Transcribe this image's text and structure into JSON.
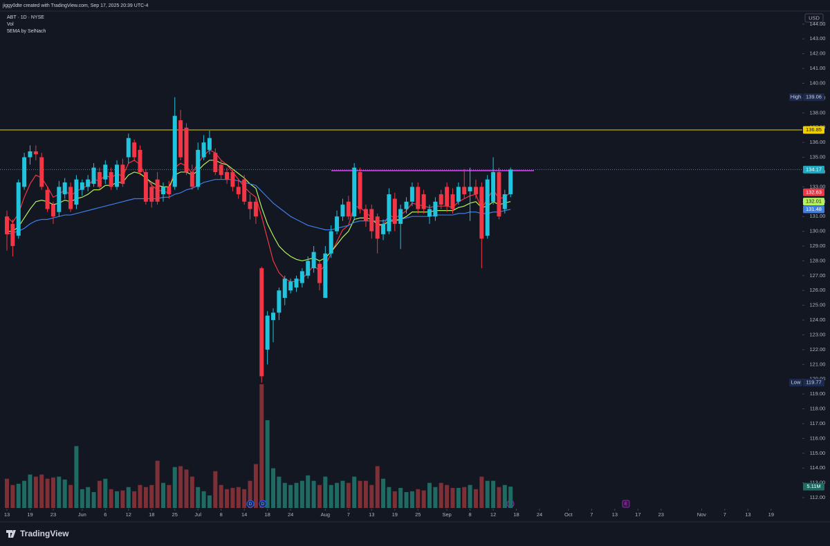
{
  "header": {
    "attribution": "jiggy0dte created with TradingView.com, Sep 17, 2025 20:39 UTC-4",
    "symbol": "ABT · 1D · NYSE",
    "indicators": [
      "Vol",
      "5EMA by SelNach"
    ]
  },
  "chart_data": {
    "type": "candlestick",
    "currency": "USD",
    "up_color": "#22c3dc",
    "down_color": "#f23645",
    "open": [
      131.0,
      130.5,
      129.7,
      133.0,
      135.0,
      135.4,
      135.0,
      132.8,
      131.8,
      131.3,
      132.5,
      133.0,
      131.8,
      132.8,
      133.0,
      133.2,
      134.0,
      133.5,
      134.0,
      133.0,
      134.5,
      135.0,
      136.0,
      135.5,
      134.0,
      133.0,
      133.5,
      132.5,
      133.0,
      133.0,
      137.5,
      137.0,
      134.0,
      133.0,
      135.0,
      135.5,
      135.3,
      134.5,
      134.0,
      134.0,
      133.0,
      133.5,
      132.0,
      132.0,
      127.5,
      122.0,
      124.0,
      124.5,
      125.5,
      126.0,
      126.2,
      126.5,
      127.0,
      127.5,
      127.8,
      125.5,
      128.5,
      130.0,
      131.0,
      132.0,
      131.0,
      134.0,
      131.5,
      131.5,
      131.0,
      129.8,
      130.0,
      132.2,
      130.5,
      131.5,
      132.0,
      133.0,
      132.5,
      131.0,
      131.0,
      132.5,
      133.0,
      132.5,
      132.0,
      133.0,
      132.7,
      133.0,
      133.0,
      129.7,
      132.0,
      134.0,
      131.5,
      132.5
    ],
    "high": [
      131.4,
      130.8,
      133.5,
      135.3,
      135.8,
      135.8,
      135.3,
      133.0,
      132.0,
      133.4,
      133.6,
      133.3,
      133.8,
      133.5,
      133.8,
      134.6,
      134.3,
      134.8,
      134.3,
      134.8,
      134.9,
      136.6,
      136.2,
      135.8,
      134.2,
      133.3,
      134.0,
      133.3,
      133.4,
      139.06,
      138.2,
      137.3,
      134.5,
      136.0,
      136.5,
      136.8,
      135.6,
      134.8,
      134.3,
      134.2,
      133.5,
      133.8,
      132.5,
      132.3,
      127.6,
      124.6,
      124.8,
      126.2,
      127.0,
      126.8,
      127.0,
      127.5,
      128.3,
      129.0,
      128.0,
      129.0,
      130.4,
      131.4,
      132.2,
      132.4,
      134.6,
      134.3,
      131.8,
      131.8,
      131.2,
      130.8,
      132.9,
      132.6,
      131.8,
      132.3,
      133.3,
      133.3,
      132.8,
      131.8,
      132.3,
      132.8,
      133.3,
      132.9,
      133.3,
      134.2,
      134.3,
      133.5,
      133.3,
      133.8,
      135.0,
      134.3,
      132.8,
      134.3
    ],
    "low": [
      128.7,
      128.3,
      129.5,
      132.8,
      134.5,
      134.8,
      132.8,
      131.3,
      130.5,
      131.0,
      132.2,
      131.3,
      131.5,
      132.4,
      132.7,
      133.0,
      132.8,
      133.2,
      132.8,
      132.8,
      133.0,
      134.6,
      134.8,
      133.8,
      131.8,
      131.6,
      131.8,
      132.0,
      132.2,
      132.8,
      134.8,
      133.8,
      132.8,
      132.8,
      134.8,
      135.2,
      133.8,
      133.5,
      133.2,
      132.7,
      132.2,
      131.8,
      130.8,
      130.5,
      119.77,
      121.0,
      122.5,
      124.0,
      125.0,
      125.8,
      125.9,
      126.2,
      126.8,
      127.2,
      126.0,
      125.5,
      128.2,
      129.8,
      130.7,
      130.8,
      130.8,
      131.2,
      130.3,
      129.5,
      128.5,
      129.4,
      129.8,
      130.0,
      128.8,
      131.2,
      131.7,
      131.2,
      131.2,
      130.5,
      130.7,
      131.5,
      131.3,
      131.2,
      131.8,
      132.2,
      130.7,
      132.2,
      127.5,
      129.5,
      131.8,
      130.8,
      131.2,
      132.3
    ],
    "close": [
      129.8,
      129.0,
      133.3,
      135.0,
      135.4,
      135.2,
      133.0,
      131.5,
      131.0,
      133.0,
      133.3,
      131.5,
      133.5,
      133.3,
      133.5,
      134.3,
      133.0,
      134.5,
      133.0,
      134.5,
      133.2,
      136.3,
      135.0,
      134.0,
      132.0,
      132.0,
      132.0,
      133.0,
      132.5,
      137.8,
      135.0,
      134.0,
      133.0,
      135.5,
      136.0,
      136.3,
      134.0,
      133.8,
      133.5,
      133.0,
      132.5,
      132.0,
      131.5,
      131.0,
      120.2,
      124.3,
      124.5,
      126.0,
      126.8,
      126.6,
      126.8,
      127.3,
      128.0,
      128.6,
      126.5,
      128.5,
      130.0,
      131.0,
      131.8,
      131.0,
      134.3,
      131.5,
      130.7,
      130.0,
      129.5,
      130.5,
      132.5,
      130.5,
      131.5,
      132.0,
      133.0,
      131.5,
      131.5,
      131.5,
      132.0,
      131.8,
      131.7,
      131.5,
      133.0,
      132.5,
      133.0,
      132.5,
      129.5,
      133.5,
      134.0,
      131.0,
      132.5,
      134.17
    ],
    "volume": {
      "name": "Vol",
      "up_color": "#1f6b63",
      "down_color": "#7f2f36",
      "values": [
        7.0,
        5.5,
        5.8,
        6.5,
        8.0,
        7.5,
        8.0,
        7.0,
        7.3,
        7.5,
        6.8,
        5.5,
        14.8,
        4.5,
        5.0,
        3.8,
        6.5,
        7.0,
        4.5,
        4.0,
        4.2,
        5.0,
        4.0,
        5.5,
        5.0,
        5.5,
        11.3,
        6.0,
        5.5,
        9.8,
        10.0,
        9.2,
        7.5,
        5.0,
        4.0,
        3.0,
        8.8,
        5.5,
        4.5,
        4.8,
        5.0,
        4.5,
        6.5,
        10.5,
        29.6,
        21.0,
        9.5,
        7.5,
        6.0,
        5.5,
        6.0,
        6.5,
        7.8,
        6.5,
        5.5,
        7.5,
        5.5,
        6.0,
        6.5,
        6.0,
        7.5,
        6.5,
        6.5,
        5.5,
        10.0,
        7.0,
        5.0,
        4.0,
        4.8,
        3.8,
        4.0,
        4.5,
        4.2,
        6.0,
        5.0,
        6.0,
        5.5,
        4.8,
        4.8,
        5.0,
        5.5,
        4.5,
        7.5,
        6.5,
        6.5,
        5.0,
        5.5,
        5.11
      ],
      "value_labels": [
        null,
        null,
        null,
        null,
        null,
        null,
        null,
        null,
        null,
        null,
        null,
        null,
        null,
        null,
        null,
        null,
        null,
        null,
        null,
        null,
        null,
        null,
        null,
        null,
        null,
        null,
        null,
        null,
        null,
        null,
        null,
        null,
        null,
        null,
        null,
        null,
        null,
        null,
        null,
        null,
        null,
        null,
        null,
        null,
        null,
        null,
        null,
        null,
        null,
        null,
        null,
        null,
        null,
        null,
        null,
        null,
        null,
        null,
        null,
        null,
        null,
        null,
        null,
        null,
        null,
        null,
        null,
        null,
        null,
        null,
        null,
        null,
        null,
        null,
        null,
        null,
        null,
        null,
        null,
        null,
        null,
        null,
        null,
        null,
        null,
        null,
        null,
        "5.11M"
      ]
    },
    "series": [
      {
        "color": "#f23645",
        "values": [
          131.0,
          130.6,
          131.2,
          132.3,
          133.2,
          133.8,
          133.6,
          133.0,
          132.3,
          132.5,
          132.8,
          132.4,
          132.7,
          132.9,
          133.1,
          133.5,
          133.4,
          133.8,
          133.6,
          133.9,
          133.7,
          134.6,
          134.8,
          134.5,
          133.7,
          133.1,
          132.8,
          132.7,
          132.6,
          134.3,
          134.6,
          134.4,
          133.9,
          134.6,
          135.1,
          135.5,
          135.3,
          134.8,
          134.5,
          134.0,
          133.5,
          133.0,
          132.6,
          132.3,
          131.0,
          129.5,
          128.0,
          127.2,
          126.8,
          126.6,
          126.6,
          126.8,
          127.2,
          127.7,
          127.3,
          127.7,
          128.5,
          129.3,
          130.1,
          130.4,
          131.7,
          131.6,
          131.3,
          130.9,
          130.4,
          130.4,
          131.1,
          130.9,
          131.1,
          131.4,
          131.9,
          131.8,
          131.7,
          131.6,
          131.7,
          131.7,
          131.7,
          131.6,
          132.0,
          132.2,
          132.4,
          132.5,
          131.5,
          132.2,
          132.8,
          132.2,
          132.3,
          132.63
        ]
      },
      {
        "color": "#b5f25e",
        "values": [
          130.0,
          130.0,
          130.3,
          130.9,
          131.5,
          132.0,
          132.1,
          132.0,
          131.8,
          131.9,
          132.1,
          132.0,
          132.2,
          132.3,
          132.5,
          132.8,
          132.8,
          133.1,
          133.1,
          133.3,
          133.3,
          133.8,
          134.0,
          133.9,
          133.6,
          133.3,
          133.1,
          133.0,
          133.0,
          133.8,
          134.0,
          134.0,
          133.8,
          134.1,
          134.5,
          134.8,
          134.8,
          134.6,
          134.5,
          134.2,
          133.9,
          133.6,
          133.2,
          132.9,
          131.6,
          130.5,
          129.7,
          129.0,
          128.6,
          128.3,
          128.1,
          128.0,
          128.1,
          128.2,
          128.0,
          128.2,
          128.6,
          129.1,
          129.6,
          130.0,
          130.8,
          130.9,
          130.9,
          130.8,
          130.5,
          130.4,
          130.7,
          130.7,
          130.8,
          131.0,
          131.3,
          131.3,
          131.3,
          131.3,
          131.4,
          131.4,
          131.4,
          131.4,
          131.6,
          131.7,
          131.9,
          132.0,
          131.6,
          131.7,
          132.0,
          131.8,
          131.9,
          132.01
        ]
      },
      {
        "color": "#3d7fe8",
        "values": [
          129.8,
          129.9,
          130.0,
          130.2,
          130.5,
          130.7,
          130.8,
          130.8,
          130.9,
          131.0,
          131.1,
          131.1,
          131.2,
          131.3,
          131.4,
          131.5,
          131.6,
          131.7,
          131.8,
          131.9,
          132.0,
          132.1,
          132.2,
          132.2,
          132.2,
          132.2,
          132.2,
          132.3,
          132.3,
          132.5,
          132.6,
          132.8,
          132.9,
          133.1,
          133.3,
          133.4,
          133.5,
          133.5,
          133.5,
          133.5,
          133.4,
          133.3,
          133.2,
          133.1,
          132.7,
          132.3,
          131.9,
          131.6,
          131.3,
          131.0,
          130.8,
          130.6,
          130.4,
          130.3,
          130.2,
          130.1,
          130.1,
          130.2,
          130.3,
          130.4,
          130.6,
          130.7,
          130.7,
          130.7,
          130.7,
          130.7,
          130.8,
          130.8,
          130.8,
          130.9,
          131.0,
          131.0,
          131.0,
          131.0,
          131.1,
          131.1,
          131.1,
          131.1,
          131.2,
          131.2,
          131.3,
          131.3,
          131.2,
          131.2,
          131.3,
          131.3,
          131.4,
          131.48
        ]
      }
    ],
    "ylim": [
      111.3,
      144.6
    ],
    "yticks": [
      {
        "value": 112,
        "label": "112.00"
      },
      {
        "value": 113,
        "label": "113.00"
      },
      {
        "value": 114,
        "label": "114.00"
      },
      {
        "value": 115,
        "label": "115.00"
      },
      {
        "value": 116,
        "label": "116.00"
      },
      {
        "value": 117,
        "label": "117.00"
      },
      {
        "value": 118,
        "label": "118.00"
      },
      {
        "value": 119,
        "label": "119.00"
      },
      {
        "value": 120,
        "label": "120.00"
      },
      {
        "value": 121,
        "label": "121.00"
      },
      {
        "value": 122,
        "label": "122.00"
      },
      {
        "value": 123,
        "label": "123.00"
      },
      {
        "value": 124,
        "label": "124.00"
      },
      {
        "value": 125,
        "label": "125.00"
      },
      {
        "value": 126,
        "label": "126.00"
      },
      {
        "value": 127,
        "label": "127.00"
      },
      {
        "value": 128,
        "label": "128.00"
      },
      {
        "value": 129,
        "label": "129.00"
      },
      {
        "value": 130,
        "label": "130.00"
      },
      {
        "value": 131,
        "label": "131.00"
      },
      {
        "value": 132,
        "label": "132.00"
      },
      {
        "value": 133,
        "label": "133.00"
      },
      {
        "value": 134,
        "label": "134.00"
      },
      {
        "value": 135,
        "label": "135.00"
      },
      {
        "value": 136,
        "label": "136.00"
      },
      {
        "value": 137,
        "label": "137.00"
      },
      {
        "value": 138,
        "label": "138.00"
      },
      {
        "value": 139,
        "label": "139.00"
      },
      {
        "value": 140,
        "label": "140.00"
      },
      {
        "value": 141,
        "label": "141.00"
      },
      {
        "value": 142,
        "label": "142.00"
      },
      {
        "value": 143,
        "label": "143.00"
      },
      {
        "value": 144,
        "label": "144.00"
      }
    ],
    "xticks": [
      {
        "value": 0,
        "label": "13"
      },
      {
        "value": 4,
        "label": "19"
      },
      {
        "value": 8,
        "label": "23"
      },
      {
        "value": 13,
        "label": "Jun"
      },
      {
        "value": 17,
        "label": "6"
      },
      {
        "value": 21,
        "label": "12"
      },
      {
        "value": 25,
        "label": "18"
      },
      {
        "value": 29,
        "label": "25"
      },
      {
        "value": 33,
        "label": "Jul"
      },
      {
        "value": 37,
        "label": "8"
      },
      {
        "value": 41,
        "label": "14"
      },
      {
        "value": 45,
        "label": "18"
      },
      {
        "value": 49,
        "label": "24"
      },
      {
        "value": 55,
        "label": "Aug"
      },
      {
        "value": 59,
        "label": "7"
      },
      {
        "value": 63,
        "label": "13"
      },
      {
        "value": 67,
        "label": "19"
      },
      {
        "value": 71,
        "label": "25"
      },
      {
        "value": 76,
        "label": "Sep"
      },
      {
        "value": 80,
        "label": "8"
      },
      {
        "value": 84,
        "label": "12"
      },
      {
        "value": 88,
        "label": "18"
      },
      {
        "value": 92,
        "label": "24"
      },
      {
        "value": 97,
        "label": "Oct"
      },
      {
        "value": 101,
        "label": "7"
      },
      {
        "value": 105,
        "label": "13"
      },
      {
        "value": 109,
        "label": "17"
      },
      {
        "value": 113,
        "label": "23"
      },
      {
        "value": 120,
        "label": "Nov"
      },
      {
        "value": 124,
        "label": "7"
      },
      {
        "value": 128,
        "label": "13"
      },
      {
        "value": 132,
        "label": "19"
      }
    ],
    "high_text": "High",
    "low_text": "Low",
    "hlines": [
      {
        "value": 136.85,
        "color": "#f0d000"
      }
    ],
    "resistance": {
      "value": 134.1,
      "color": "#e040fb"
    },
    "last_color": "#1fa8bf",
    "events": [
      "D",
      "D",
      "E"
    ]
  },
  "footer": "TradingView"
}
